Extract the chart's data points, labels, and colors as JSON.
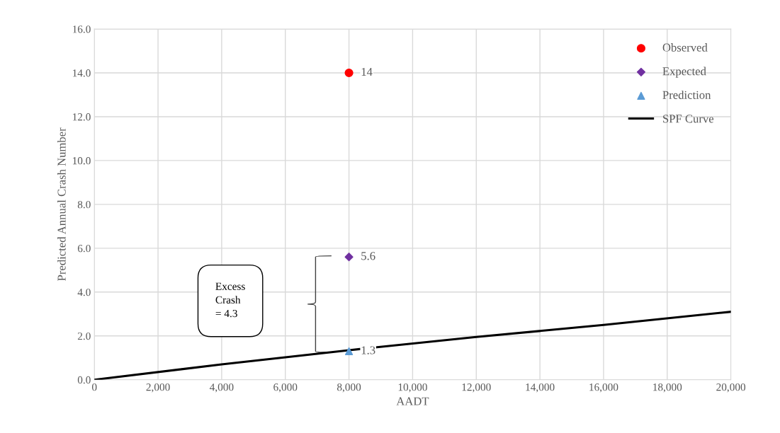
{
  "chart_data": {
    "type": "scatter",
    "xlabel": "AADT",
    "ylabel": "Predicted Annual Crash Number",
    "xlim": [
      0,
      20000
    ],
    "xticks": [
      {
        "value": 0,
        "label": "0"
      },
      {
        "value": 2000,
        "label": "2,000"
      },
      {
        "value": 4000,
        "label": "4,000"
      },
      {
        "value": 6000,
        "label": "6,000"
      },
      {
        "value": 8000,
        "label": "8,000"
      },
      {
        "value": 10000,
        "label": "10,000"
      },
      {
        "value": 12000,
        "label": "12,000"
      },
      {
        "value": 14000,
        "label": "14,000"
      },
      {
        "value": 16000,
        "label": "16,000"
      },
      {
        "value": 18000,
        "label": "18,000"
      },
      {
        "value": 20000,
        "label": "20,000"
      }
    ],
    "ylim": [
      0,
      16
    ],
    "yticks": [
      {
        "value": 0,
        "label": "0.0"
      },
      {
        "value": 2,
        "label": "2.0"
      },
      {
        "value": 4,
        "label": "4.0"
      },
      {
        "value": 6,
        "label": "6.0"
      },
      {
        "value": 8,
        "label": "8.0"
      },
      {
        "value": 10,
        "label": "10.0"
      },
      {
        "value": 12,
        "label": "12.0"
      },
      {
        "value": 14,
        "label": "14.0"
      },
      {
        "value": 16,
        "label": "16.0"
      }
    ],
    "grid": true,
    "legend": "top right",
    "series": [
      {
        "name": "Observed",
        "marker": "circle",
        "color": "#ff0000",
        "x": [
          8000
        ],
        "values": [
          14
        ],
        "value_labels": [
          "14"
        ]
      },
      {
        "name": "Expected",
        "marker": "diamond",
        "color": "#7030a0",
        "x": [
          8000
        ],
        "values": [
          5.6
        ],
        "value_labels": [
          "5.6"
        ]
      },
      {
        "name": "Prediction",
        "marker": "triangle",
        "color": "#5b9bd5",
        "x": [
          8000
        ],
        "values": [
          1.3
        ],
        "value_labels": [
          "1.3"
        ]
      },
      {
        "name": "SPF Curve",
        "type": "line",
        "marker": "none",
        "color": "#000000",
        "x": [
          0,
          4000,
          8000,
          12000,
          16000,
          20000
        ],
        "values": [
          0,
          0.7,
          1.35,
          1.95,
          2.5,
          3.1
        ]
      }
    ],
    "annotations": [
      "Excess\nCrash\n= 4.3"
    ]
  }
}
